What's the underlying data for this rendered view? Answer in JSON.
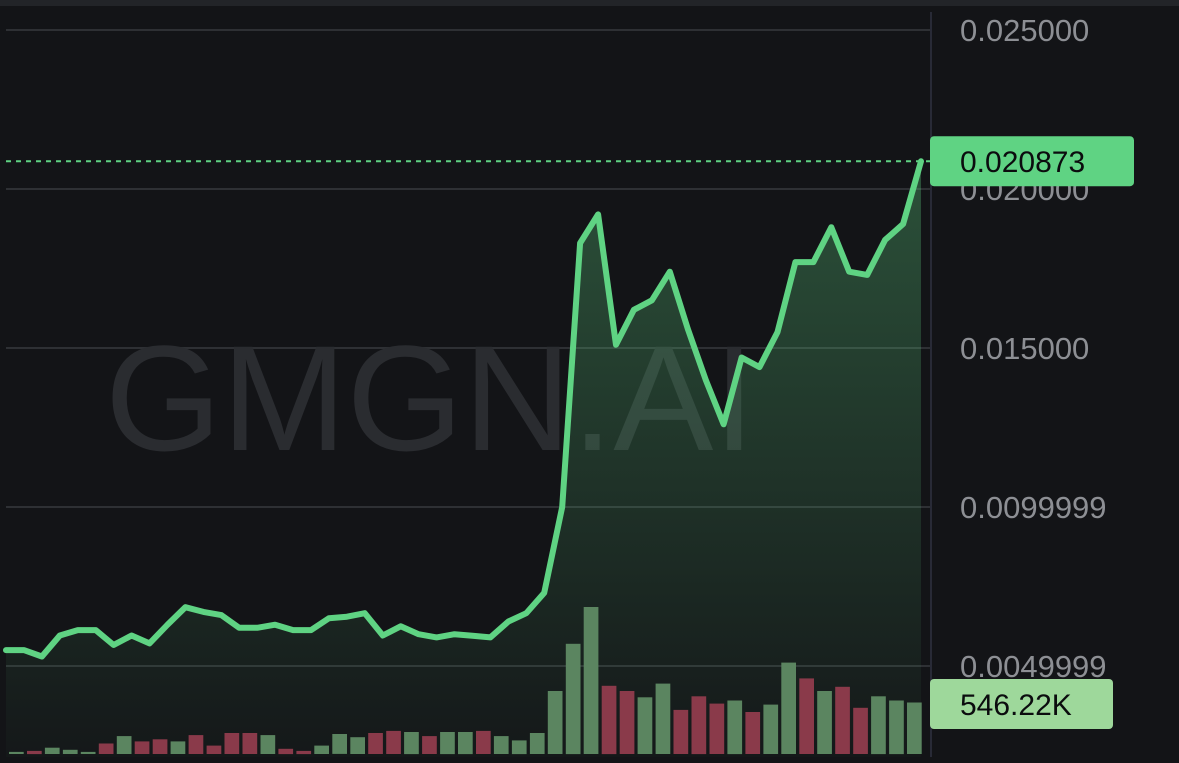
{
  "watermark": "GMGN.AI",
  "colors": {
    "background": "#131417",
    "grid": "#2e3034",
    "line": "#5fd383",
    "up_volume": "#5b8560",
    "down_volume": "#8a3a4a",
    "price_badge": "#5fd383",
    "volume_badge": "#9ed89b",
    "axis_text": "#8d8f94"
  },
  "price_badge": "0.020873",
  "volume_badge": "546.22K",
  "chart_data": {
    "type": "line",
    "title": "",
    "xlabel": "",
    "ylabel": "",
    "ylim": [
      0.003,
      0.0261
    ],
    "y_ticks": [
      "0.025000",
      "0.020000",
      "0.015000",
      "0.0099999",
      "0.0049999"
    ],
    "y_tick_values": [
      0.025,
      0.02,
      0.015,
      0.0099999,
      0.0049999
    ],
    "current_price": 0.020873,
    "grid": true,
    "price": [
      0.0055,
      0.0055,
      0.0053,
      0.00596,
      0.00613,
      0.00613,
      0.00566,
      0.00596,
      0.00571,
      0.0063,
      0.00685,
      0.0067,
      0.0066,
      0.0062,
      0.0062,
      0.0063,
      0.00613,
      0.00613,
      0.0065,
      0.00655,
      0.00666,
      0.00596,
      0.00625,
      0.006,
      0.0059,
      0.006,
      0.00595,
      0.0059,
      0.0064,
      0.00666,
      0.0073,
      0.01,
      0.0183,
      0.0192,
      0.0151,
      0.0162,
      0.0165,
      0.0174,
      0.0156,
      0.014,
      0.0126,
      0.0147,
      0.0144,
      0.0155,
      0.0177,
      0.0177,
      0.0188,
      0.0174,
      0.0173,
      0.0184,
      0.0189,
      0.02087
    ],
    "volume": [
      {
        "value": 2,
        "direction": "up"
      },
      {
        "value": 3,
        "direction": "down"
      },
      {
        "value": 6,
        "direction": "up"
      },
      {
        "value": 4,
        "direction": "up"
      },
      {
        "value": 2,
        "direction": "up"
      },
      {
        "value": 10,
        "direction": "down"
      },
      {
        "value": 17,
        "direction": "up"
      },
      {
        "value": 12,
        "direction": "down"
      },
      {
        "value": 14,
        "direction": "down"
      },
      {
        "value": 12,
        "direction": "up"
      },
      {
        "value": 18,
        "direction": "down"
      },
      {
        "value": 8,
        "direction": "down"
      },
      {
        "value": 20,
        "direction": "down"
      },
      {
        "value": 20,
        "direction": "down"
      },
      {
        "value": 18,
        "direction": "up"
      },
      {
        "value": 5,
        "direction": "down"
      },
      {
        "value": 3,
        "direction": "down"
      },
      {
        "value": 8,
        "direction": "up"
      },
      {
        "value": 19,
        "direction": "up"
      },
      {
        "value": 16,
        "direction": "up"
      },
      {
        "value": 20,
        "direction": "down"
      },
      {
        "value": 22,
        "direction": "down"
      },
      {
        "value": 21,
        "direction": "up"
      },
      {
        "value": 17,
        "direction": "down"
      },
      {
        "value": 21,
        "direction": "up"
      },
      {
        "value": 21,
        "direction": "up"
      },
      {
        "value": 22,
        "direction": "down"
      },
      {
        "value": 17,
        "direction": "up"
      },
      {
        "value": 13,
        "direction": "up"
      },
      {
        "value": 20,
        "direction": "up"
      },
      {
        "value": 60,
        "direction": "up"
      },
      {
        "value": 105,
        "direction": "up"
      },
      {
        "value": 140,
        "direction": "up"
      },
      {
        "value": 65,
        "direction": "down"
      },
      {
        "value": 60,
        "direction": "down"
      },
      {
        "value": 54,
        "direction": "up"
      },
      {
        "value": 67,
        "direction": "up"
      },
      {
        "value": 42,
        "direction": "down"
      },
      {
        "value": 55,
        "direction": "down"
      },
      {
        "value": 48,
        "direction": "down"
      },
      {
        "value": 51,
        "direction": "up"
      },
      {
        "value": 40,
        "direction": "down"
      },
      {
        "value": 47,
        "direction": "up"
      },
      {
        "value": 87,
        "direction": "up"
      },
      {
        "value": 72,
        "direction": "down"
      },
      {
        "value": 60,
        "direction": "up"
      },
      {
        "value": 64,
        "direction": "down"
      },
      {
        "value": 44,
        "direction": "down"
      },
      {
        "value": 55,
        "direction": "up"
      },
      {
        "value": 51,
        "direction": "up"
      },
      {
        "value": 49,
        "direction": "up"
      }
    ]
  }
}
